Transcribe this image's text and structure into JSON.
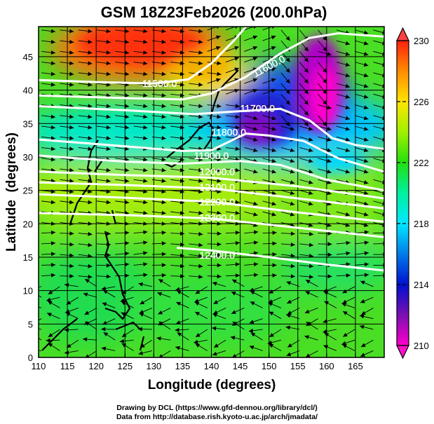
{
  "chart_data": {
    "type": "heatmap",
    "title": "GSM 18Z23Feb2026 (200.0hPa)",
    "xlabel": "Longitude (degrees)",
    "ylabel": "Latitude  (degrees)",
    "xlim": [
      110,
      170
    ],
    "ylim": [
      0,
      49.5
    ],
    "xticks": [
      110,
      115,
      120,
      125,
      130,
      135,
      140,
      145,
      150,
      155,
      160,
      165
    ],
    "yticks": [
      0,
      5,
      10,
      15,
      20,
      25,
      30,
      35,
      40,
      45
    ],
    "grid": true,
    "colorbar": {
      "range": [
        210,
        230
      ],
      "ticks": [
        210,
        214,
        218,
        222,
        226,
        230
      ],
      "extend": "both"
    },
    "contours": [
      {
        "label": "11500.0",
        "label_at": [
          131,
          41.0
        ],
        "points": [
          [
            110,
            41.5
          ],
          [
            120,
            41.2
          ],
          [
            130,
            41
          ],
          [
            136,
            41.6
          ],
          [
            140,
            44
          ],
          [
            144,
            47.5
          ],
          [
            146,
            49.5
          ]
        ]
      },
      {
        "label": "11600.0",
        "label_at": [
          150,
          43.6
        ],
        "points": [
          [
            110,
            39.2
          ],
          [
            125,
            38.8
          ],
          [
            135,
            38.6
          ],
          [
            140,
            39.5
          ],
          [
            146,
            42
          ],
          [
            152,
            45.5
          ],
          [
            157,
            47.8
          ],
          [
            162,
            48.5
          ],
          [
            170,
            48
          ]
        ]
      },
      {
        "label": "11700.0",
        "label_at": [
          148,
          37.3
        ],
        "points": [
          [
            110,
            37.6
          ],
          [
            125,
            37
          ],
          [
            137,
            36.4
          ],
          [
            144,
            36.8
          ],
          [
            152,
            37.2
          ],
          [
            157,
            35.5
          ],
          [
            161,
            32.8
          ],
          [
            165,
            31.8
          ],
          [
            170,
            31.2
          ]
        ]
      },
      {
        "label": "11800.0",
        "label_at": [
          143,
          33.7
        ],
        "points": [
          [
            110,
            32.6
          ],
          [
            125,
            31.6
          ],
          [
            135,
            30.9
          ],
          [
            140,
            31
          ],
          [
            146,
            33.5
          ],
          [
            150,
            33.2
          ],
          [
            156,
            32.4
          ],
          [
            162,
            29.8
          ],
          [
            170,
            27.8
          ]
        ]
      },
      {
        "label": "11900.0",
        "label_at": [
          140,
          30.2
        ],
        "points": [
          [
            110,
            30.2
          ],
          [
            125,
            29.3
          ],
          [
            135,
            29
          ],
          [
            145,
            29.4
          ],
          [
            152,
            28.8
          ],
          [
            160,
            26.6
          ],
          [
            170,
            25
          ]
        ]
      },
      {
        "label": "12000.0",
        "label_at": [
          141,
          27.8
        ],
        "points": [
          [
            110,
            27.8
          ],
          [
            125,
            27.3
          ],
          [
            140,
            26.9
          ],
          [
            155,
            25.6
          ],
          [
            170,
            23.8
          ]
        ]
      },
      {
        "label": "12100.0",
        "label_at": [
          141,
          25.5
        ],
        "points": [
          [
            110,
            26.2
          ],
          [
            125,
            25.8
          ],
          [
            140,
            25.3
          ],
          [
            155,
            23.8
          ],
          [
            170,
            22.3
          ]
        ]
      },
      {
        "label": "12200.0",
        "label_at": [
          141,
          23.3
        ],
        "points": [
          [
            110,
            24.4
          ],
          [
            125,
            23.9
          ],
          [
            140,
            23.3
          ],
          [
            155,
            21.7
          ],
          [
            170,
            20.3
          ]
        ]
      },
      {
        "label": "12300.0",
        "label_at": [
          141,
          20.9
        ],
        "points": [
          [
            110,
            21.6
          ],
          [
            125,
            21.3
          ],
          [
            140,
            20.8
          ],
          [
            155,
            19.4
          ],
          [
            170,
            18
          ]
        ]
      },
      {
        "label": "12400.0",
        "label_at": [
          141,
          15.3
        ],
        "points": [
          [
            134,
            16.4
          ],
          [
            140,
            16
          ],
          [
            150,
            15
          ],
          [
            160,
            13.9
          ],
          [
            170,
            13
          ]
        ]
      }
    ],
    "vectors": "streamlines (wind)"
  },
  "credits": {
    "line1": "Drawing by DCL (https://www.gfd-dennou.org/library/dcl/)",
    "line2": "Data from http://database.rish.kyoto-u.ac.jp/arch/jmadata/"
  },
  "colors": {
    "c210": "#ff00cc",
    "c214": "#0010d0",
    "c218": "#00e8f0",
    "c222": "#22e010",
    "c226": "#ffe400",
    "c230": "#ff2010"
  }
}
